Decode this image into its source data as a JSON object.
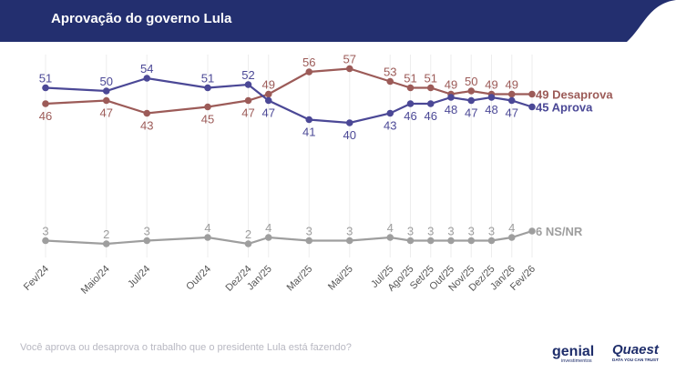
{
  "header": {
    "title": "Aprovação do governo Lula",
    "bg_color": "#232f6f"
  },
  "footer": {
    "question": "Você aprova ou desaprova o trabalho que o presidente Lula está fazendo?",
    "logo_genial": {
      "name": "genial",
      "subtitle": "investimentos"
    },
    "logo_quaest": {
      "name": "Quaest",
      "subtitle": "DATA YOU CAN TRUST"
    }
  },
  "chart_data": {
    "type": "line",
    "title": "Aprovação do governo Lula",
    "categories": [
      "Fev/24",
      "Maio/24",
      "Jul/24",
      "Out/24",
      "Dez/24",
      "Jan/25",
      "Mar/25",
      "Mai/25",
      "Jul/25",
      "Ago/25",
      "Set/25",
      "Out/25",
      "Nov/25",
      "Dez/25",
      "Jan/26",
      "Fev/26"
    ],
    "x_months": [
      0,
      3,
      5,
      8,
      10,
      11,
      13,
      15,
      17,
      18,
      19,
      20,
      21,
      22,
      23,
      24
    ],
    "ylim": [
      0,
      62
    ],
    "grid": "vertical",
    "series": [
      {
        "name": "Desaprova",
        "end_label": "49 Desaprova",
        "color": "#9c5b58",
        "values": [
          46,
          47,
          43,
          45,
          47,
          49,
          56,
          57,
          53,
          51,
          51,
          49,
          50,
          49,
          49,
          49
        ],
        "labels": [
          "46",
          "47",
          "43",
          "45",
          "47",
          "49",
          "56",
          "57",
          "53",
          "51",
          "51",
          "49",
          "50",
          "49",
          "49",
          ""
        ],
        "label_pos": [
          "below",
          "below",
          "below",
          "below",
          "below",
          "above",
          "above",
          "above",
          "above",
          "above",
          "above",
          "above",
          "above",
          "above",
          "above",
          "none"
        ]
      },
      {
        "name": "Aprova",
        "end_label": "45 Aprova",
        "color": "#4b4896",
        "values": [
          51,
          50,
          54,
          51,
          52,
          47,
          41,
          40,
          43,
          46,
          46,
          48,
          47,
          48,
          47,
          45
        ],
        "labels": [
          "51",
          "50",
          "54",
          "51",
          "52",
          "47",
          "41",
          "40",
          "43",
          "46",
          "46",
          "48",
          "47",
          "48",
          "47",
          ""
        ],
        "label_pos": [
          "above",
          "above",
          "above",
          "above",
          "above",
          "below",
          "below",
          "below",
          "below",
          "below",
          "below",
          "below",
          "below",
          "below",
          "below",
          "none"
        ]
      },
      {
        "name": "NS/NR",
        "end_label": "6 NS/NR",
        "color": "#9e9e9e",
        "values": [
          3,
          2,
          3,
          4,
          2,
          4,
          3,
          3,
          4,
          3,
          3,
          3,
          3,
          3,
          4,
          6
        ],
        "labels": [
          "3",
          "2",
          "3",
          "4",
          "2",
          "4",
          "3",
          "3",
          "4",
          "3",
          "3",
          "3",
          "3",
          "3",
          "4",
          ""
        ],
        "label_pos": [
          "above",
          "above",
          "above",
          "above",
          "above",
          "above",
          "above",
          "above",
          "above",
          "above",
          "above",
          "above",
          "above",
          "above",
          "above",
          "none"
        ]
      }
    ]
  }
}
